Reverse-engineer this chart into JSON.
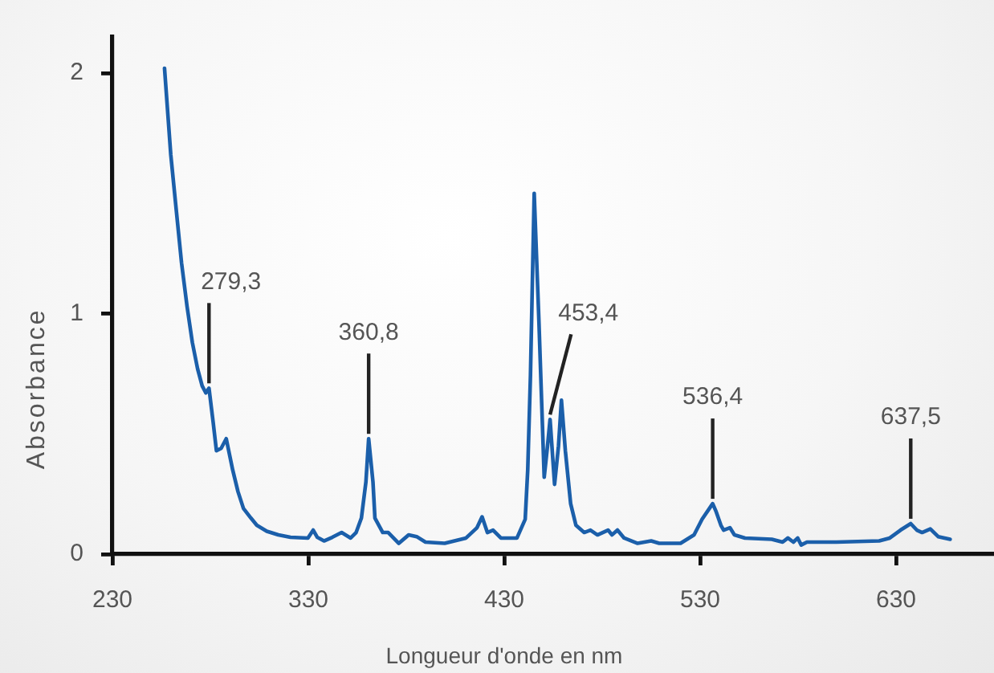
{
  "chart_data": {
    "type": "line",
    "xlabel": "Longueur d'onde en nm",
    "ylabel": "Absorbance",
    "color": "#1b5faa",
    "x": [
      256.6,
      259.8,
      262.6,
      265.3,
      268.1,
      270.8,
      273.5,
      275.8,
      277.7,
      279.3,
      281.4,
      283.1,
      285.5,
      288.1,
      291.4,
      294.1,
      296.9,
      300.7,
      303.7,
      308.8,
      314.7,
      320.9,
      329.8,
      332.5,
      334.6,
      338,
      342.2,
      347,
      351.6,
      354.4,
      357.1,
      359.4,
      360.8,
      363,
      364,
      368,
      370.8,
      376.2,
      381.2,
      385.3,
      389.8,
      399.6,
      410.5,
      416.1,
      418.7,
      421.4,
      424.3,
      428.3,
      436.5,
      440.7,
      442,
      443.4,
      445.3,
      447.7,
      450.4,
      452.1,
      453.4,
      455.7,
      457.7,
      459.2,
      461.2,
      463.9,
      466.6,
      470.8,
      474,
      477.6,
      483,
      485,
      487.8,
      491.2,
      498.1,
      505,
      509.1,
      520,
      526.9,
      531,
      536.4,
      538,
      540.6,
      542,
      545.2,
      547.5,
      552.9,
      566.6,
      572.1,
      574.8,
      577.6,
      579.8,
      581.6,
      584.5,
      599.5,
      621.4,
      626.8,
      632.3,
      637.5,
      640.6,
      643.3,
      647.5,
      651.5,
      657.6
    ],
    "values": [
      2.02,
      1.66,
      1.43,
      1.21,
      1.03,
      0.88,
      0.77,
      0.7,
      0.67,
      0.69,
      0.55,
      0.43,
      0.44,
      0.48,
      0.35,
      0.26,
      0.19,
      0.15,
      0.12,
      0.095,
      0.08,
      0.07,
      0.067,
      0.1,
      0.07,
      0.055,
      0.07,
      0.09,
      0.067,
      0.09,
      0.15,
      0.3,
      0.48,
      0.3,
      0.15,
      0.09,
      0.09,
      0.045,
      0.08,
      0.073,
      0.05,
      0.045,
      0.067,
      0.11,
      0.155,
      0.09,
      0.1,
      0.067,
      0.067,
      0.145,
      0.35,
      0.745,
      1.5,
      0.97,
      0.32,
      0.45,
      0.56,
      0.29,
      0.45,
      0.64,
      0.43,
      0.21,
      0.12,
      0.09,
      0.1,
      0.08,
      0.1,
      0.08,
      0.1,
      0.067,
      0.045,
      0.055,
      0.045,
      0.045,
      0.08,
      0.145,
      0.21,
      0.18,
      0.12,
      0.1,
      0.11,
      0.08,
      0.067,
      0.062,
      0.05,
      0.067,
      0.05,
      0.067,
      0.038,
      0.05,
      0.05,
      0.055,
      0.067,
      0.1,
      0.127,
      0.1,
      0.09,
      0.105,
      0.073,
      0.062
    ],
    "xlim": [
      230,
      680
    ],
    "ylim": [
      0,
      2.15
    ],
    "xticks": [
      230,
      330,
      430,
      530,
      630
    ],
    "yticks": [
      0,
      1,
      2
    ],
    "annotations": [
      {
        "text": "279,3",
        "x": 279.3,
        "y": 0.69
      },
      {
        "text": "360,8",
        "x": 360.8,
        "y": 0.48
      },
      {
        "text": "453,4",
        "x": 453.4,
        "y": 0.56
      },
      {
        "text": "536,4",
        "x": 536.4,
        "y": 0.21
      },
      {
        "text": "637,5",
        "x": 637.5,
        "y": 0.127
      }
    ]
  }
}
